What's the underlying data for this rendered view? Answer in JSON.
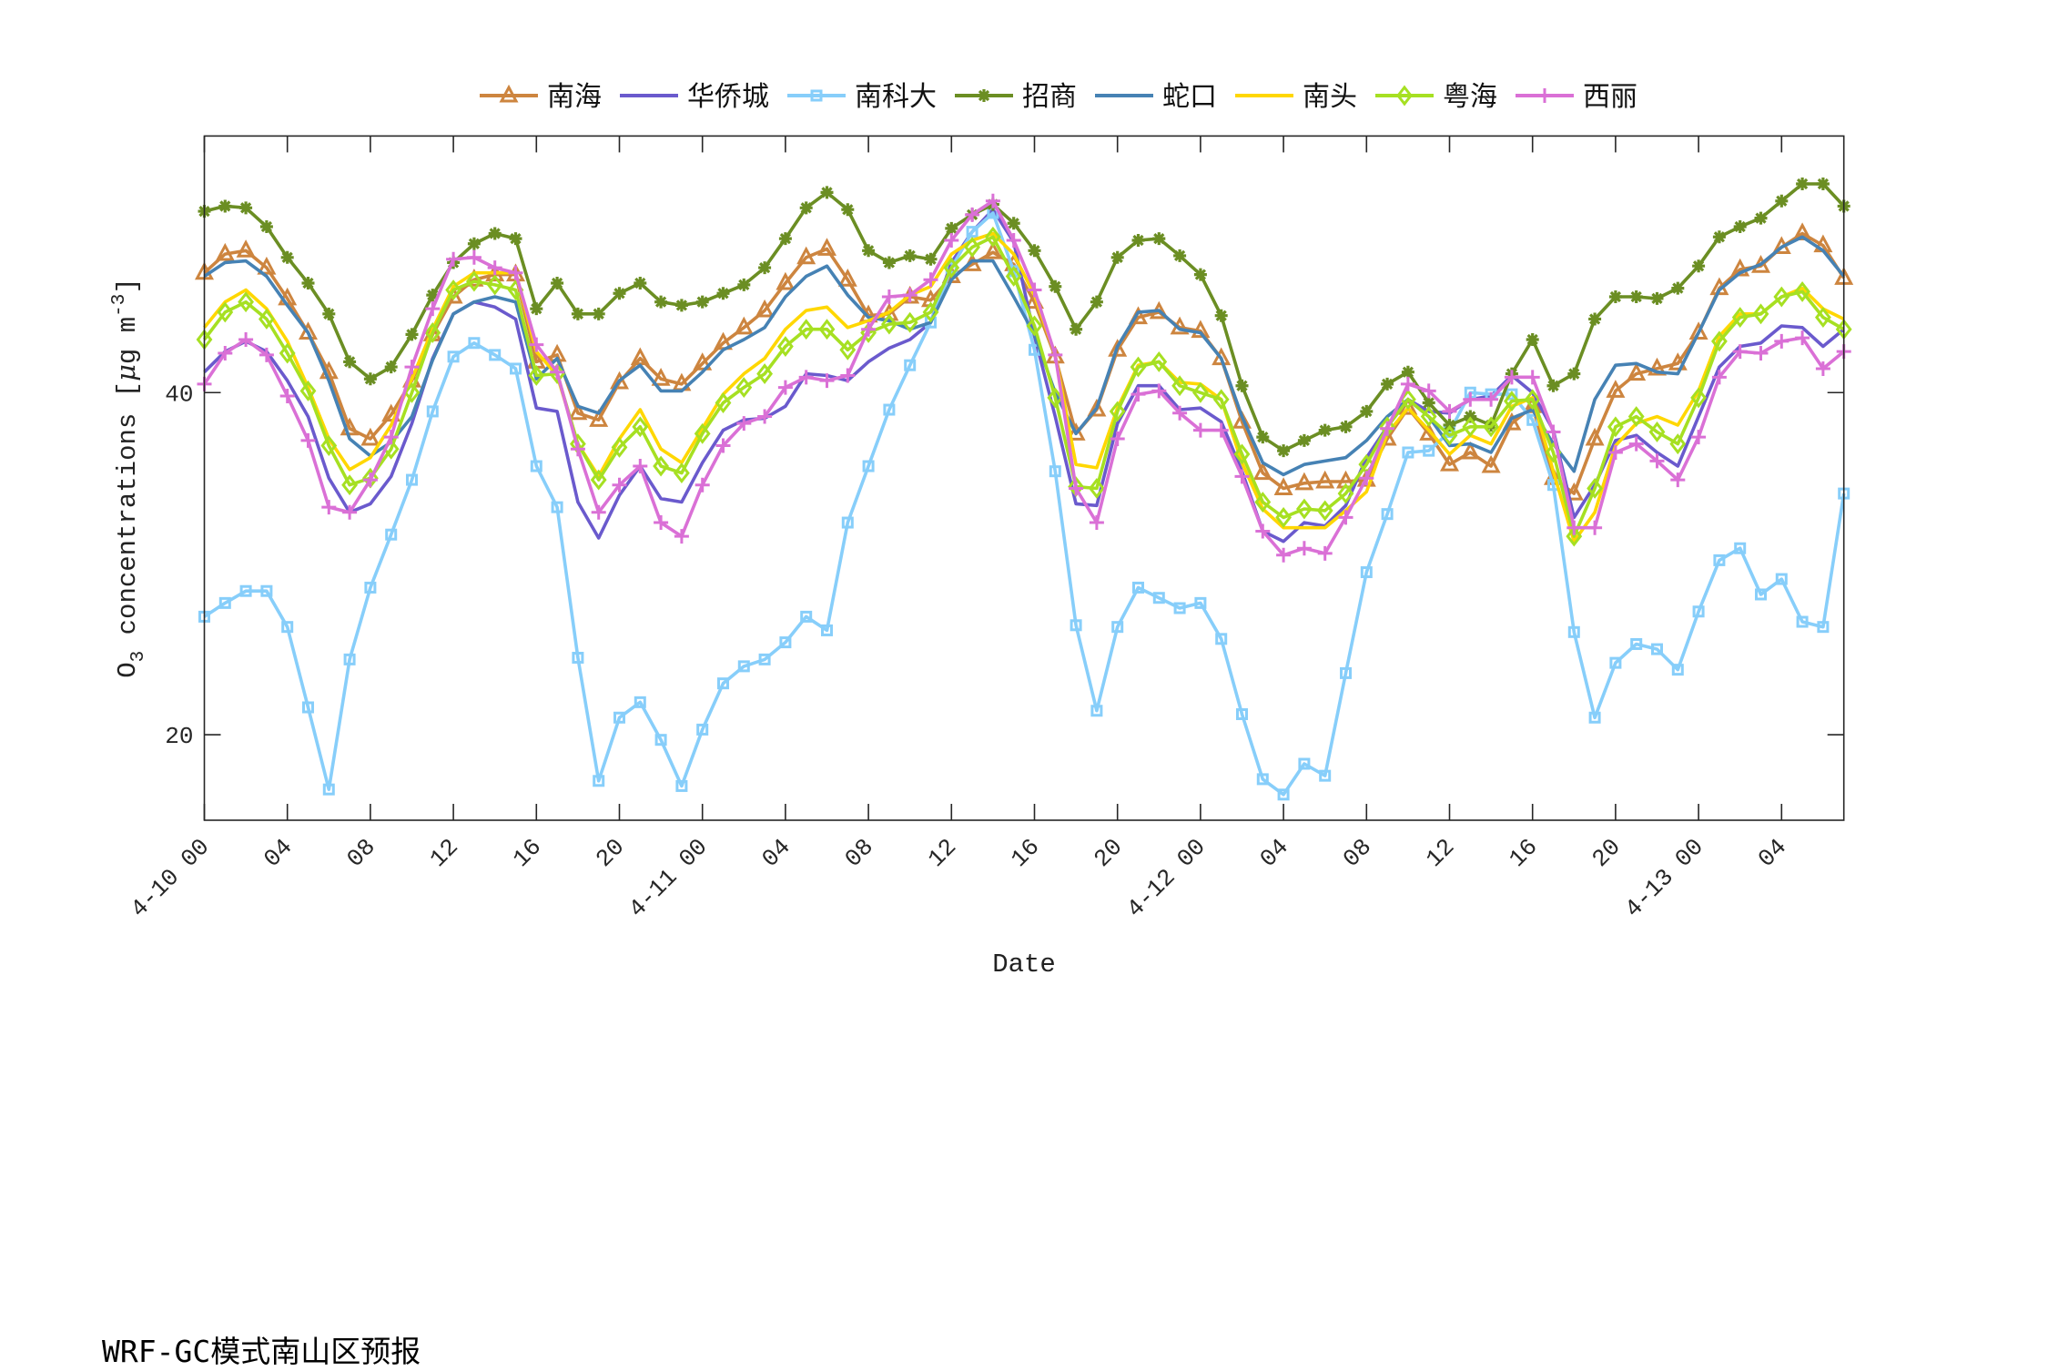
{
  "chart_data": {
    "type": "line",
    "xlabel": "Date",
    "ylabel": {
      "base": "O",
      "sub": "3",
      "text": " concentrations [",
      "mu": "μ",
      "unit": "g m",
      "sup": "-3",
      "close": "]"
    },
    "ylim": [
      15,
      55
    ],
    "xlim_hours": [
      0,
      79
    ],
    "yticks": [
      20,
      40
    ],
    "xticks": [
      {
        "hour": 0,
        "label": "4-10 00"
      },
      {
        "hour": 4,
        "label": "04"
      },
      {
        "hour": 8,
        "label": "08"
      },
      {
        "hour": 12,
        "label": "12"
      },
      {
        "hour": 16,
        "label": "16"
      },
      {
        "hour": 20,
        "label": "20"
      },
      {
        "hour": 24,
        "label": "4-11 00"
      },
      {
        "hour": 28,
        "label": "04"
      },
      {
        "hour": 32,
        "label": "08"
      },
      {
        "hour": 36,
        "label": "12"
      },
      {
        "hour": 40,
        "label": "16"
      },
      {
        "hour": 44,
        "label": "20"
      },
      {
        "hour": 48,
        "label": "4-12 00"
      },
      {
        "hour": 52,
        "label": "04"
      },
      {
        "hour": 56,
        "label": "08"
      },
      {
        "hour": 60,
        "label": "12"
      },
      {
        "hour": 64,
        "label": "16"
      },
      {
        "hour": 68,
        "label": "20"
      },
      {
        "hour": 72,
        "label": "4-13 00"
      },
      {
        "hour": 76,
        "label": "04"
      }
    ],
    "grid": false,
    "legend_position": "top-center",
    "series": [
      {
        "name": "南海",
        "color": "#CD853F",
        "marker": "triangle",
        "values": [
          47.0,
          48.1,
          48.3,
          47.3,
          45.5,
          43.5,
          41.2,
          37.9,
          37.3,
          38.7,
          40.7,
          43.4,
          45.6,
          46.6,
          46.9,
          46.9,
          41.8,
          42.2,
          38.8,
          38.4,
          40.6,
          42.0,
          40.8,
          40.5,
          41.7,
          42.9,
          43.8,
          44.8,
          46.4,
          47.9,
          48.4,
          46.6,
          44.5,
          44.6,
          45.6,
          45.4,
          46.8,
          47.5,
          48.2,
          47.5,
          45.3,
          42.1,
          37.6,
          39.0,
          42.5,
          44.4,
          44.7,
          43.8,
          43.6,
          42.0,
          38.3,
          35.3,
          34.4,
          34.7,
          34.8,
          34.8,
          34.9,
          37.3,
          39.1,
          37.6,
          35.8,
          36.5,
          35.7,
          38.2,
          39.2,
          35.0,
          34.1,
          37.3,
          40.1,
          41.1,
          41.4,
          41.7,
          43.5,
          46.1,
          47.2,
          47.4,
          48.5,
          49.3,
          48.6,
          46.7
        ]
      },
      {
        "name": "华侨城",
        "color": "#6A5ACD",
        "marker": "none",
        "values": [
          41.2,
          42.4,
          43.0,
          42.4,
          40.7,
          38.6,
          35.0,
          33.0,
          33.5,
          35.1,
          38.2,
          42.0,
          44.6,
          45.3,
          45.0,
          44.3,
          39.1,
          38.9,
          33.6,
          31.5,
          34.0,
          35.7,
          33.8,
          33.6,
          35.9,
          37.8,
          38.4,
          38.5,
          39.2,
          41.1,
          41.0,
          40.7,
          41.8,
          42.6,
          43.1,
          44.1,
          47.6,
          49.4,
          50.7,
          48.8,
          43.3,
          38.6,
          33.5,
          33.4,
          38.2,
          40.4,
          40.4,
          39.0,
          39.1,
          38.3,
          35.4,
          31.9,
          31.3,
          32.4,
          32.2,
          33.4,
          36.2,
          38.0,
          39.6,
          38.9,
          38.8,
          39.6,
          39.8,
          41.0,
          40.0,
          37.8,
          32.7,
          34.6,
          37.2,
          37.5,
          36.5,
          35.7,
          38.6,
          41.5,
          42.7,
          42.9,
          43.9,
          43.8,
          42.7,
          43.7
        ]
      },
      {
        "name": "南科大",
        "color": "#87CEFA",
        "marker": "square",
        "values": [
          26.9,
          27.7,
          28.4,
          28.4,
          26.3,
          21.6,
          16.8,
          24.4,
          28.6,
          31.7,
          34.9,
          38.9,
          42.1,
          42.9,
          42.2,
          41.4,
          35.7,
          33.3,
          24.5,
          17.3,
          21.0,
          21.9,
          19.7,
          17.0,
          20.3,
          23.0,
          24.0,
          24.4,
          25.4,
          26.9,
          26.1,
          32.4,
          35.7,
          39.0,
          41.6,
          44.1,
          47.3,
          49.4,
          50.5,
          47.1,
          42.5,
          35.4,
          26.4,
          21.4,
          26.3,
          28.6,
          28.0,
          27.4,
          27.7,
          25.6,
          21.2,
          17.4,
          16.5,
          18.3,
          17.6,
          23.6,
          29.5,
          32.9,
          36.5,
          36.6,
          37.7,
          40.0,
          39.9,
          39.9,
          38.4,
          34.6,
          26.0,
          21.0,
          24.2,
          25.3,
          25.0,
          23.8,
          27.2,
          30.2,
          30.9,
          28.2,
          29.1,
          26.6,
          26.3,
          34.1
        ]
      },
      {
        "name": "招商",
        "color": "#6B8E23",
        "marker": "asterisk",
        "values": [
          50.6,
          50.9,
          50.8,
          49.7,
          47.9,
          46.4,
          44.6,
          41.8,
          40.8,
          41.5,
          43.4,
          45.7,
          47.6,
          48.7,
          49.3,
          49.0,
          44.9,
          46.4,
          44.6,
          44.6,
          45.8,
          46.4,
          45.3,
          45.1,
          45.3,
          45.8,
          46.3,
          47.3,
          49.0,
          50.8,
          51.7,
          50.7,
          48.3,
          47.6,
          48.0,
          47.8,
          49.6,
          50.4,
          51.0,
          49.9,
          48.3,
          46.2,
          43.7,
          45.3,
          47.9,
          48.9,
          49.0,
          48.0,
          46.9,
          44.5,
          40.4,
          37.4,
          36.6,
          37.2,
          37.8,
          38.0,
          38.9,
          40.5,
          41.2,
          39.4,
          38.1,
          38.6,
          38.1,
          41.1,
          43.1,
          40.4,
          41.1,
          44.3,
          45.6,
          45.6,
          45.5,
          46.1,
          47.4,
          49.1,
          49.7,
          50.2,
          51.2,
          52.2,
          52.2,
          50.9
        ]
      },
      {
        "name": "蛇口",
        "color": "#4682B4",
        "marker": "none",
        "values": [
          46.8,
          47.6,
          47.7,
          46.8,
          45.1,
          43.5,
          40.7,
          37.3,
          36.3,
          37.1,
          38.6,
          41.9,
          44.6,
          45.3,
          45.6,
          45.3,
          40.8,
          42.0,
          39.2,
          38.8,
          40.7,
          41.6,
          40.1,
          40.1,
          41.2,
          42.5,
          43.1,
          43.8,
          45.6,
          46.8,
          47.4,
          45.7,
          44.4,
          44.2,
          43.7,
          44.1,
          46.6,
          47.7,
          47.7,
          45.6,
          43.4,
          40.0,
          37.6,
          39.1,
          42.7,
          44.7,
          44.8,
          43.7,
          43.5,
          42.0,
          38.6,
          35.9,
          35.2,
          35.8,
          36.0,
          36.2,
          37.2,
          38.6,
          39.6,
          38.6,
          36.9,
          37.0,
          36.5,
          38.5,
          39.0,
          37.0,
          35.4,
          39.6,
          41.6,
          41.7,
          41.2,
          41.1,
          43.5,
          46.0,
          47.0,
          47.5,
          48.5,
          49.1,
          48.3,
          46.8
        ]
      },
      {
        "name": "南头",
        "color": "#FFD700",
        "marker": "none",
        "values": [
          43.8,
          45.3,
          46.0,
          44.9,
          43.0,
          40.3,
          37.3,
          35.5,
          36.2,
          38.1,
          40.8,
          43.7,
          46.2,
          47.0,
          47.0,
          47.0,
          42.4,
          41.0,
          37.0,
          35.1,
          37.3,
          39.0,
          36.7,
          35.9,
          37.9,
          39.9,
          41.1,
          42.0,
          43.7,
          44.8,
          45.0,
          43.8,
          44.2,
          44.7,
          45.7,
          46.2,
          48.1,
          48.9,
          49.3,
          48.1,
          45.7,
          42.2,
          35.8,
          35.6,
          39.1,
          41.6,
          41.8,
          40.6,
          40.5,
          39.6,
          35.9,
          33.2,
          32.1,
          32.1,
          32.1,
          33.1,
          34.2,
          37.6,
          39.1,
          37.8,
          36.4,
          37.5,
          37.0,
          39.2,
          39.7,
          35.4,
          31.3,
          33.0,
          36.9,
          38.2,
          38.6,
          38.1,
          40.1,
          43.3,
          44.6,
          44.6,
          45.6,
          46.1,
          44.9,
          44.3
        ]
      },
      {
        "name": "粤海",
        "color": "#A6E022",
        "marker": "diamond",
        "values": [
          43.1,
          44.7,
          45.3,
          44.3,
          42.3,
          40.1,
          36.9,
          34.6,
          35.0,
          36.7,
          40.0,
          43.5,
          46.0,
          46.5,
          46.3,
          46.0,
          41.0,
          41.1,
          37.0,
          34.9,
          36.8,
          38.0,
          35.7,
          35.3,
          37.6,
          39.4,
          40.3,
          41.1,
          42.7,
          43.7,
          43.7,
          42.5,
          43.5,
          44.0,
          44.1,
          44.7,
          47.3,
          48.5,
          49.1,
          46.8,
          43.9,
          39.7,
          34.5,
          34.4,
          38.9,
          41.5,
          41.8,
          40.4,
          40.0,
          39.6,
          36.4,
          33.6,
          32.7,
          33.2,
          33.1,
          34.1,
          35.8,
          38.0,
          39.6,
          38.6,
          37.5,
          38.0,
          38.0,
          39.5,
          39.6,
          36.5,
          31.6,
          34.4,
          38.0,
          38.6,
          37.7,
          37.0,
          39.7,
          43.0,
          44.4,
          44.6,
          45.6,
          45.9,
          44.4,
          43.7
        ]
      },
      {
        "name": "西丽",
        "color": "#DA70D6",
        "marker": "plus",
        "values": [
          40.5,
          42.3,
          43.1,
          42.2,
          39.8,
          37.2,
          33.3,
          33.0,
          34.9,
          37.4,
          41.5,
          44.9,
          47.8,
          47.9,
          47.3,
          47.0,
          42.8,
          41.2,
          36.7,
          33.0,
          34.6,
          35.7,
          32.4,
          31.6,
          34.6,
          36.9,
          38.2,
          38.6,
          40.3,
          40.9,
          40.7,
          41.0,
          43.7,
          45.6,
          45.7,
          46.6,
          48.9,
          50.4,
          51.2,
          48.9,
          46.0,
          42.2,
          34.4,
          32.4,
          37.3,
          39.9,
          40.1,
          38.8,
          37.8,
          37.8,
          35.1,
          31.9,
          30.5,
          30.9,
          30.6,
          32.7,
          35.0,
          37.9,
          40.5,
          40.1,
          38.9,
          39.6,
          39.6,
          40.9,
          40.9,
          37.7,
          32.1,
          32.1,
          36.5,
          37.0,
          36.0,
          34.9,
          37.4,
          40.9,
          42.4,
          42.3,
          43.0,
          43.2,
          41.4,
          42.4
        ]
      }
    ]
  },
  "footer": {
    "title": "WRF-GC模式南山区预报"
  }
}
